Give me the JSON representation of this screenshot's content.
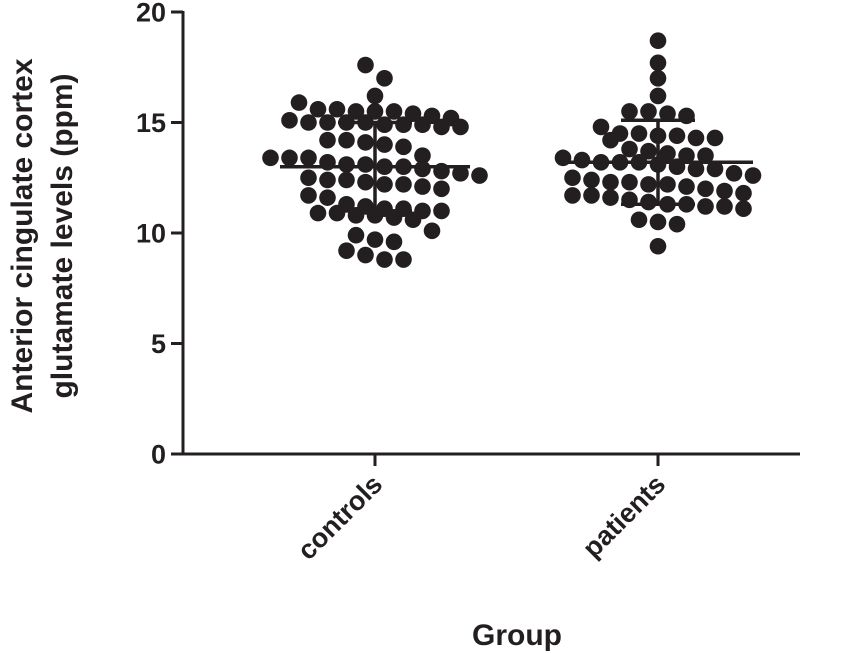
{
  "chart_data": {
    "type": "scatter",
    "title": "",
    "xlabel": "Group",
    "ylabel_lines": [
      "Anterior cingulate cortex",
      "glutamate levels (ppm)"
    ],
    "categories": [
      "controls",
      "patients"
    ],
    "ylim": [
      0,
      20
    ],
    "yticks": [
      "0",
      "5",
      "10",
      "15",
      "20"
    ],
    "grid": false,
    "legend": "none",
    "point_color": "#231f20",
    "series": [
      {
        "category": "controls",
        "mean": 13.0,
        "sd_low": 11.0,
        "sd_high": 15.0,
        "values": [
          17.6,
          17.0,
          16.2,
          15.9,
          15.6,
          15.6,
          15.5,
          15.5,
          15.5,
          15.4,
          15.3,
          15.2,
          15.1,
          15.0,
          15.0,
          15.0,
          15.0,
          14.9,
          14.9,
          14.9,
          14.8,
          14.8,
          14.2,
          14.2,
          14.1,
          14.0,
          13.9,
          13.5,
          13.4,
          13.4,
          13.4,
          13.2,
          13.1,
          13.1,
          13.0,
          13.0,
          12.9,
          12.8,
          12.7,
          12.6,
          12.5,
          12.4,
          12.4,
          12.3,
          12.2,
          12.2,
          12.1,
          12.0,
          11.7,
          11.6,
          11.3,
          11.2,
          11.1,
          11.1,
          11.0,
          11.0,
          10.9,
          10.9,
          10.8,
          10.8,
          10.7,
          10.6,
          10.1,
          9.9,
          9.7,
          9.6,
          9.2,
          9.0,
          8.8,
          8.8
        ]
      },
      {
        "category": "patients",
        "mean": 13.2,
        "sd_low": 11.3,
        "sd_high": 15.1,
        "values": [
          18.7,
          17.7,
          17.0,
          16.2,
          15.5,
          15.5,
          15.4,
          15.3,
          14.8,
          14.5,
          14.5,
          14.4,
          14.4,
          14.3,
          14.3,
          14.2,
          13.8,
          13.7,
          13.6,
          13.5,
          13.5,
          13.4,
          13.3,
          13.2,
          13.2,
          13.2,
          13.1,
          13.0,
          12.9,
          12.9,
          12.7,
          12.6,
          12.5,
          12.4,
          12.3,
          12.3,
          12.2,
          12.2,
          12.1,
          12.0,
          11.9,
          11.8,
          11.7,
          11.7,
          11.6,
          11.5,
          11.4,
          11.3,
          11.3,
          11.2,
          11.2,
          11.1,
          10.6,
          10.5,
          10.4,
          9.4
        ]
      }
    ]
  }
}
